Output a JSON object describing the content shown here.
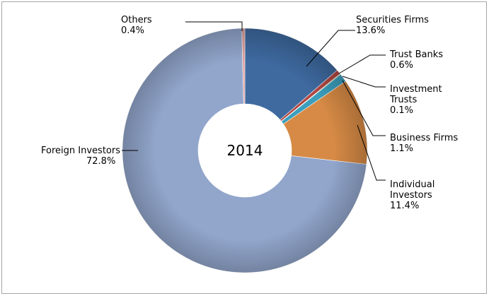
{
  "chart_data": {
    "type": "pie",
    "variant": "donut",
    "title": "2014",
    "start": "top (12 o'clock)",
    "direction": "clockwise",
    "categories": [
      "Securities Firms",
      "Trust Banks",
      "Investment Trusts",
      "Business Firms",
      "Individual Investors",
      "Foreign Investors",
      "Others"
    ],
    "values": [
      13.6,
      0.6,
      0.1,
      1.1,
      11.4,
      72.8,
      0.4
    ],
    "value_labels": [
      "13.6%",
      "0.6%",
      "0.1%",
      "1.1%",
      "11.4%",
      "72.8%",
      "0.4%"
    ],
    "colors": [
      "#3e6aa0",
      "#b14742",
      "#7c9a4a",
      "#3b9fbd",
      "#d68a45",
      "#92a6cc",
      "#e0a0a0"
    ],
    "legend": "none"
  }
}
